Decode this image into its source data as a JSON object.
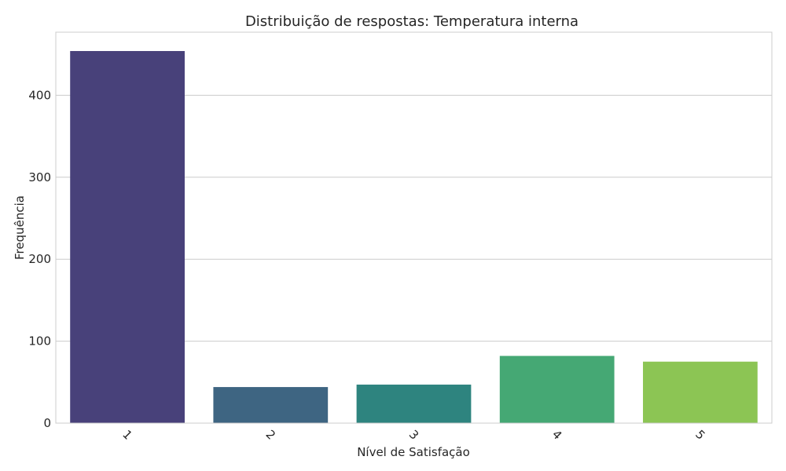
{
  "chart_data": {
    "type": "bar",
    "title": "Distribuição de respostas: Temperatura interna",
    "xlabel": "Nível de Satisfação",
    "ylabel": "Frequência",
    "categories": [
      "1",
      "2",
      "3",
      "4",
      "5"
    ],
    "values": [
      454,
      44,
      47,
      82,
      75
    ],
    "ylim": [
      0,
      477
    ],
    "yticks": [
      0,
      100,
      200,
      300,
      400
    ],
    "colors": [
      "#48417a",
      "#3e6582",
      "#2e847f",
      "#45a874",
      "#8cc554"
    ],
    "grid": true
  }
}
